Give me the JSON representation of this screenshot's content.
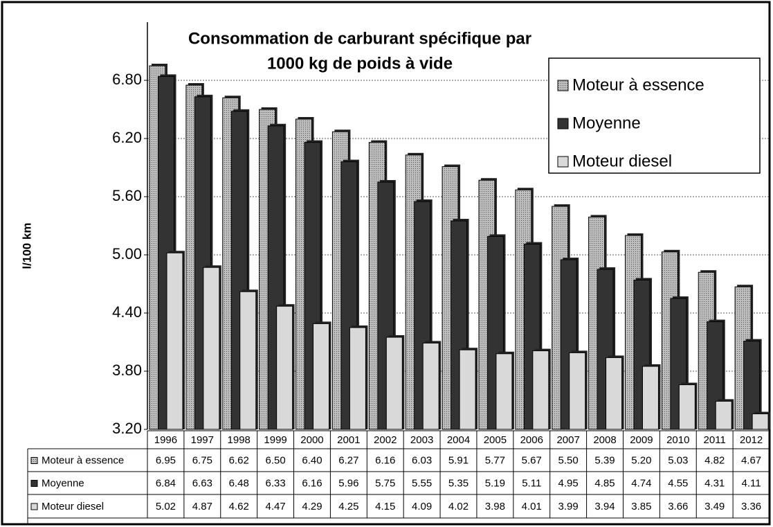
{
  "chart_data": {
    "type": "bar",
    "title": [
      "Consommation de carburant spécifique par",
      "1000 kg de poids à vide"
    ],
    "y_label": "l/100 km",
    "categories": [
      "1996",
      "1997",
      "1998",
      "1999",
      "2000",
      "2001",
      "2002",
      "2003",
      "2004",
      "2005",
      "2006",
      "2007",
      "2008",
      "2009",
      "2010",
      "2011",
      "2012"
    ],
    "series": [
      {
        "name": "Moteur à essence",
        "color": "#a6a6a6",
        "values": [
          6.95,
          6.75,
          6.62,
          6.5,
          6.4,
          6.27,
          6.16,
          6.03,
          5.91,
          5.77,
          5.67,
          5.5,
          5.39,
          5.2,
          5.03,
          4.82,
          4.67
        ],
        "value_labels": [
          "6.95",
          "6.75",
          "6.62",
          "6.50",
          "6.40",
          "6.27",
          "6.16",
          "6.03",
          "5.91",
          "5.77",
          "5.67",
          "5.50",
          "5.39",
          "5.20",
          "5.03",
          "4.82",
          "4.67"
        ]
      },
      {
        "name": "Moyenne",
        "color": "#333333",
        "values": [
          6.84,
          6.63,
          6.48,
          6.33,
          6.16,
          5.96,
          5.75,
          5.55,
          5.35,
          5.19,
          5.11,
          4.95,
          4.85,
          4.74,
          4.55,
          4.31,
          4.11
        ],
        "value_labels": [
          "6.84",
          "6.63",
          "6.48",
          "6.33",
          "6.16",
          "5.96",
          "5.75",
          "5.55",
          "5.35",
          "5.19",
          "5.11",
          "4.95",
          "4.85",
          "4.74",
          "4.55",
          "4.31",
          "4.11"
        ]
      },
      {
        "name": "Moteur diesel",
        "color": "#d9d9d9",
        "values": [
          5.02,
          4.87,
          4.62,
          4.47,
          4.29,
          4.25,
          4.15,
          4.09,
          4.02,
          3.98,
          4.01,
          3.99,
          3.94,
          3.85,
          3.66,
          3.49,
          3.36
        ],
        "value_labels": [
          "5.02",
          "4.87",
          "4.62",
          "4.47",
          "4.29",
          "4.25",
          "4.15",
          "4.09",
          "4.02",
          "3.98",
          "4.01",
          "3.99",
          "3.94",
          "3.85",
          "3.66",
          "3.49",
          "3.36"
        ]
      }
    ],
    "ylim": [
      3.2,
      7.4
    ],
    "yticks": [
      {
        "value": 3.2,
        "label": "3.20"
      },
      {
        "value": 3.8,
        "label": "3.80"
      },
      {
        "value": 4.4,
        "label": "4.40"
      },
      {
        "value": 5.0,
        "label": "5.00"
      },
      {
        "value": 5.6,
        "label": "5.60"
      },
      {
        "value": 6.2,
        "label": "6.20"
      },
      {
        "value": 6.8,
        "label": "6.80"
      }
    ],
    "grid": true,
    "legend": "top-right"
  }
}
